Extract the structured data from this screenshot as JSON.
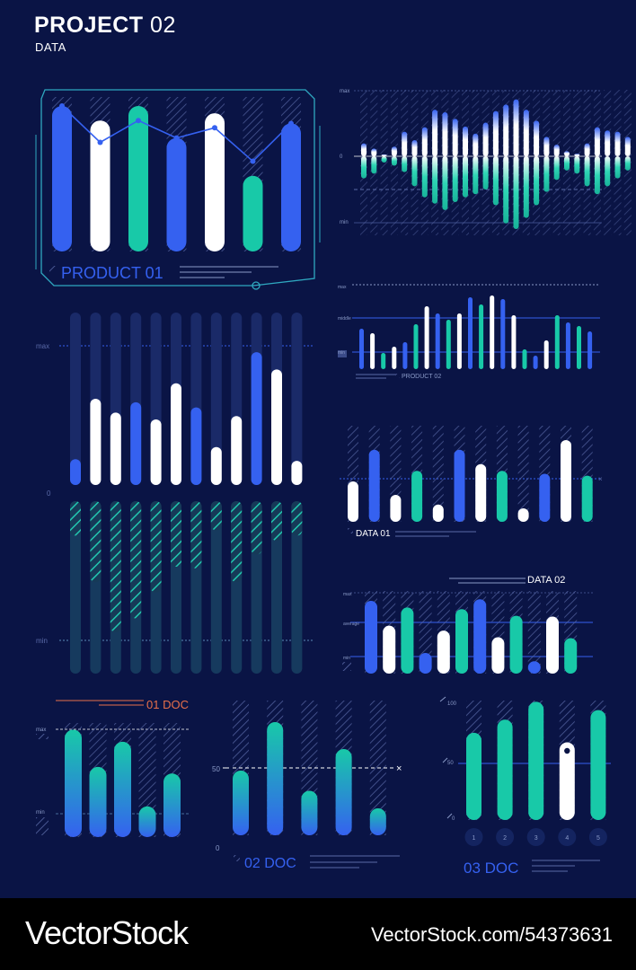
{
  "header": {
    "title": "PROJECT",
    "title_num": "02",
    "subtitle": "DATA"
  },
  "footer": {
    "brand": "VectorStock",
    "stock_id": "VectorStock.com/54373631"
  },
  "colors": {
    "bg": "#0a1445",
    "blue": "#3561f0",
    "white": "#ffffff",
    "teal": "#18c9a8",
    "track": "#1c2c6a",
    "hatch": "#5a6aa8",
    "cyan_line": "#2fa8c0",
    "orange": "#e8704a"
  },
  "chart_data": [
    {
      "id": "product01",
      "type": "bar",
      "label": "PRODUCT 01",
      "values": [
        100,
        90,
        100,
        78,
        95,
        52,
        88
      ],
      "colors": [
        "blue",
        "white",
        "teal",
        "blue",
        "white",
        "teal",
        "blue"
      ],
      "line": [
        100,
        75,
        90,
        78,
        85,
        62,
        88
      ]
    },
    {
      "id": "wave",
      "type": "bar",
      "axis_labels": [
        "max",
        "0",
        "min"
      ],
      "pos": [
        20,
        12,
        3,
        15,
        38,
        25,
        45,
        72,
        68,
        58,
        46,
        35,
        52,
        70,
        80,
        88,
        72,
        55,
        30,
        18,
        8,
        4,
        20,
        45,
        40,
        38,
        30
      ],
      "neg": [
        28,
        22,
        8,
        12,
        20,
        38,
        52,
        60,
        68,
        58,
        52,
        48,
        42,
        62,
        85,
        92,
        78,
        62,
        45,
        30,
        18,
        22,
        38,
        48,
        38,
        28,
        18
      ]
    },
    {
      "id": "product02",
      "type": "bar",
      "label": "PRODUCT 02",
      "axis_labels": [
        "max",
        "middle",
        "min"
      ],
      "values": [
        45,
        40,
        18,
        25,
        30,
        50,
        70,
        62,
        55,
        62,
        80,
        72,
        82,
        78,
        60,
        22,
        15,
        32,
        60,
        52,
        48,
        42
      ],
      "colors": [
        "blue",
        "white",
        "teal",
        "white",
        "blue",
        "teal",
        "white",
        "blue",
        "teal",
        "white",
        "blue",
        "teal",
        "white",
        "blue",
        "white",
        "teal",
        "blue",
        "white",
        "teal",
        "blue",
        "teal",
        "blue"
      ]
    },
    {
      "id": "big",
      "type": "bar",
      "axis_labels": [
        "max",
        "0",
        "min"
      ],
      "pos": [
        15,
        50,
        42,
        48,
        38,
        59,
        45,
        22,
        40,
        77,
        67,
        14
      ],
      "pos_colors": [
        "blue",
        "white",
        "white",
        "blue",
        "white",
        "white",
        "blue",
        "white",
        "white",
        "blue",
        "white",
        "white"
      ],
      "neg": [
        20,
        47,
        76,
        68,
        53,
        38,
        39,
        17,
        47,
        31,
        23,
        20
      ]
    },
    {
      "id": "data01",
      "type": "bar",
      "label": "DATA 01",
      "values": [
        42,
        75,
        28,
        53,
        18,
        75,
        60,
        53,
        14,
        50,
        85,
        48
      ],
      "colors": [
        "white",
        "blue",
        "white",
        "teal",
        "white",
        "blue",
        "white",
        "teal",
        "white",
        "blue",
        "white",
        "teal"
      ]
    },
    {
      "id": "data02",
      "type": "bar",
      "label": "DATA 02",
      "axis_labels": [
        "max",
        "average",
        "min"
      ],
      "values": [
        88,
        58,
        80,
        25,
        52,
        78,
        90,
        44,
        70,
        15,
        69,
        43
      ],
      "colors": [
        "blue",
        "white",
        "teal",
        "blue",
        "white",
        "teal",
        "blue",
        "white",
        "teal",
        "blue",
        "white",
        "teal"
      ]
    },
    {
      "id": "doc01",
      "type": "bar",
      "label": "01 DOC",
      "axis_labels": [
        "max",
        "min"
      ],
      "values": [
        98,
        64,
        87,
        28,
        58
      ]
    },
    {
      "id": "doc02",
      "type": "bar",
      "label": "02 DOC",
      "axis_labels": [
        "50",
        "0"
      ],
      "values": [
        48,
        84,
        33,
        64,
        20
      ],
      "reference": 50
    },
    {
      "id": "doc03",
      "type": "bar",
      "label": "03 DOC",
      "axis_labels": [
        "100",
        "50",
        "0"
      ],
      "values": [
        73,
        84,
        99,
        65,
        92
      ],
      "colors": [
        "teal",
        "teal",
        "teal",
        "white",
        "teal"
      ],
      "categories": [
        "1",
        "2",
        "3",
        "4",
        "5"
      ]
    }
  ]
}
